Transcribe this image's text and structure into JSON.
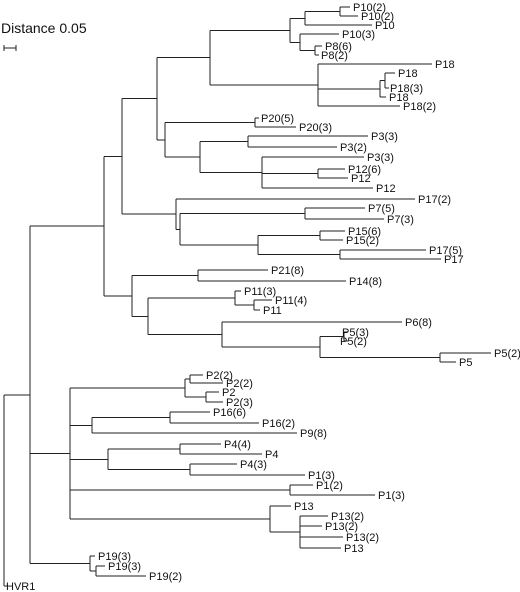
{
  "scale_bar": {
    "label": "Distance 0.05"
  },
  "leaves": [
    "P10(2)",
    "P10(2)",
    "P10",
    "P10(3)",
    "P8(6)",
    "P8(2)",
    "P18",
    "P18",
    "P18(3)",
    "P18",
    "P18(2)",
    "P20(5)",
    "P20(3)",
    "P3(3)",
    "P3(2)",
    "P3(3)",
    "P12(6)",
    "P12",
    "P12",
    "P17(2)",
    "P7(5)",
    "P7(3)",
    "P15(6)",
    "P15(2)",
    "P17(5)",
    "P17",
    "P21(8)",
    "P14(8)",
    "P11(3)",
    "P11(4)",
    "P11",
    "P6(8)",
    "P5(3)",
    "P5(2)",
    "P5(2)",
    "P5",
    "P2(2)",
    "P2(2)",
    "P2",
    "P2(3)",
    "P16(6)",
    "P16(2)",
    "P9(8)",
    "P4(4)",
    "P4",
    "P4(3)",
    "P1(3)",
    "P1(2)",
    "P1(3)",
    "P13",
    "P13(2)",
    "P13(2)",
    "P13(2)",
    "P13",
    "P19(3)",
    "P19(3)",
    "P19(2)",
    "HVR1"
  ]
}
